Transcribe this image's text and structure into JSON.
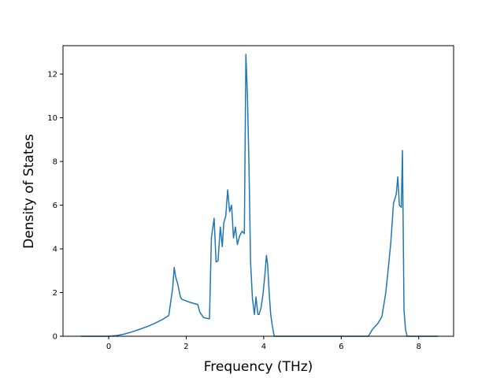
{
  "chart_data": {
    "type": "line",
    "title": "",
    "xlabel": "Frequency (THz)",
    "ylabel": "Density of States",
    "xlim": [
      -1.18,
      8.9
    ],
    "ylim": [
      0,
      13.3
    ],
    "xticks": [
      0,
      2,
      4,
      6,
      8
    ],
    "yticks": [
      0,
      2,
      4,
      6,
      8,
      10,
      12
    ],
    "xtick_labels": [
      "0",
      "2",
      "4",
      "6",
      "8"
    ],
    "ytick_labels": [
      "0",
      "2",
      "4",
      "6",
      "8",
      "10",
      "12"
    ],
    "grid": false,
    "legend": "none",
    "line_color": "#1f77b4",
    "series": [
      {
        "x": [
          -0.72,
          -0.3,
          0.0,
          0.2,
          0.4,
          0.6,
          0.8,
          1.0,
          1.2,
          1.4,
          1.55,
          1.65,
          1.69,
          1.73,
          1.78,
          1.85,
          1.88,
          1.95,
          2.1,
          2.3,
          2.35,
          2.45,
          2.6,
          2.65,
          2.72,
          2.77,
          2.82,
          2.88,
          2.93,
          2.97,
          3.02,
          3.07,
          3.12,
          3.17,
          3.22,
          3.27,
          3.32,
          3.38,
          3.44,
          3.5,
          3.54,
          3.58,
          3.62,
          3.66,
          3.71,
          3.76,
          3.8,
          3.85,
          3.88,
          3.93,
          3.98,
          4.03,
          4.07,
          4.1,
          4.14,
          4.18,
          4.22,
          4.27,
          4.3,
          5.5,
          6.7,
          6.8,
          6.95,
          7.05,
          7.15,
          7.22,
          7.28,
          7.35,
          7.42,
          7.46,
          7.5,
          7.55,
          7.58,
          7.62,
          7.66,
          7.7,
          7.75,
          8.5
        ],
        "y": [
          0.0,
          0.0,
          0.0,
          0.03,
          0.1,
          0.2,
          0.32,
          0.45,
          0.6,
          0.78,
          0.95,
          2.2,
          3.15,
          2.7,
          2.4,
          1.8,
          1.7,
          1.65,
          1.55,
          1.45,
          1.1,
          0.85,
          0.8,
          4.5,
          5.4,
          3.4,
          3.45,
          5.0,
          4.1,
          5.2,
          5.5,
          6.7,
          5.7,
          6.0,
          4.5,
          5.0,
          4.2,
          4.6,
          4.8,
          4.7,
          12.9,
          11.0,
          7.8,
          3.4,
          1.7,
          1.0,
          1.8,
          1.0,
          1.0,
          1.3,
          1.9,
          2.8,
          3.7,
          3.3,
          2.0,
          1.0,
          0.5,
          0.0,
          0.0,
          0.0,
          0.0,
          0.3,
          0.6,
          0.9,
          2.0,
          3.2,
          4.3,
          6.1,
          6.5,
          7.3,
          6.0,
          5.9,
          8.5,
          1.2,
          0.3,
          0.0,
          0.0,
          0.0
        ]
      }
    ]
  }
}
